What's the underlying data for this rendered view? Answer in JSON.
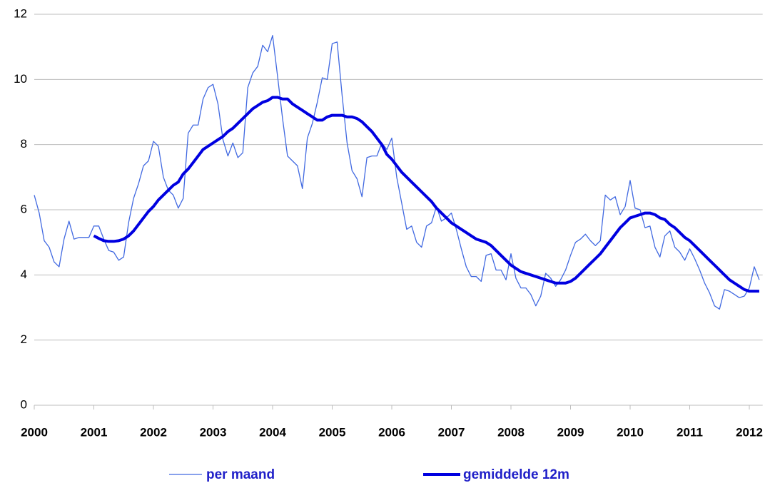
{
  "chart_data": {
    "type": "line",
    "x": [
      2000,
      2000.083,
      2000.167,
      2000.25,
      2000.333,
      2000.417,
      2000.5,
      2000.583,
      2000.667,
      2000.75,
      2000.833,
      2000.917,
      2001,
      2001.083,
      2001.167,
      2001.25,
      2001.333,
      2001.417,
      2001.5,
      2001.583,
      2001.667,
      2001.75,
      2001.833,
      2001.917,
      2002,
      2002.083,
      2002.167,
      2002.25,
      2002.333,
      2002.417,
      2002.5,
      2002.583,
      2002.667,
      2002.75,
      2002.833,
      2002.917,
      2003,
      2003.083,
      2003.167,
      2003.25,
      2003.333,
      2003.417,
      2003.5,
      2003.583,
      2003.667,
      2003.75,
      2003.833,
      2003.917,
      2004,
      2004.083,
      2004.167,
      2004.25,
      2004.333,
      2004.417,
      2004.5,
      2004.583,
      2004.667,
      2004.75,
      2004.833,
      2004.917,
      2005,
      2005.083,
      2005.167,
      2005.25,
      2005.333,
      2005.417,
      2005.5,
      2005.583,
      2005.667,
      2005.75,
      2005.833,
      2005.917,
      2006,
      2006.083,
      2006.167,
      2006.25,
      2006.333,
      2006.417,
      2006.5,
      2006.583,
      2006.667,
      2006.75,
      2006.833,
      2006.917,
      2007,
      2007.083,
      2007.167,
      2007.25,
      2007.333,
      2007.417,
      2007.5,
      2007.583,
      2007.667,
      2007.75,
      2007.833,
      2007.917,
      2008,
      2008.083,
      2008.167,
      2008.25,
      2008.333,
      2008.417,
      2008.5,
      2008.583,
      2008.667,
      2008.75,
      2008.833,
      2008.917,
      2009,
      2009.083,
      2009.167,
      2009.25,
      2009.333,
      2009.417,
      2009.5,
      2009.583,
      2009.667,
      2009.75,
      2009.833,
      2009.917,
      2010,
      2010.083,
      2010.167,
      2010.25,
      2010.333,
      2010.417,
      2010.5,
      2010.583,
      2010.667,
      2010.75,
      2010.833,
      2010.917,
      2011,
      2011.083,
      2011.167,
      2011.25,
      2011.333,
      2011.417,
      2011.5,
      2011.583,
      2011.667,
      2011.75,
      2011.833,
      2011.917,
      2012,
      2012.083,
      2012.167
    ],
    "series": [
      {
        "name": "per maand",
        "color": "#4169e1",
        "width": 1.3,
        "values": [
          6.45,
          5.9,
          5.05,
          4.85,
          4.4,
          4.25,
          5.1,
          5.65,
          5.1,
          5.15,
          5.15,
          5.15,
          5.5,
          5.5,
          5.1,
          4.75,
          4.7,
          4.45,
          4.55,
          5.6,
          6.35,
          6.8,
          7.35,
          7.5,
          8.1,
          7.95,
          7.0,
          6.6,
          6.45,
          6.05,
          6.35,
          8.35,
          8.6,
          8.6,
          9.4,
          9.75,
          9.85,
          9.25,
          8.15,
          7.65,
          8.05,
          7.6,
          7.75,
          9.75,
          10.2,
          10.4,
          11.05,
          10.85,
          11.35,
          10.1,
          8.8,
          7.65,
          7.5,
          7.35,
          6.65,
          8.2,
          8.65,
          9.3,
          10.05,
          10.0,
          11.1,
          11.15,
          9.5,
          8.05,
          7.2,
          6.95,
          6.4,
          7.6,
          7.65,
          7.65,
          8.05,
          7.85,
          8.2,
          7.0,
          6.2,
          5.4,
          5.5,
          5.0,
          4.85,
          5.5,
          5.6,
          6.1,
          5.65,
          5.75,
          5.9,
          5.4,
          4.8,
          4.25,
          3.95,
          3.95,
          3.8,
          4.6,
          4.65,
          4.15,
          4.15,
          3.85,
          4.65,
          3.9,
          3.6,
          3.6,
          3.4,
          3.05,
          3.35,
          4.05,
          3.9,
          3.65,
          3.85,
          4.15,
          4.6,
          5.0,
          5.1,
          5.25,
          5.05,
          4.9,
          5.05,
          6.45,
          6.3,
          6.4,
          5.85,
          6.1,
          6.9,
          6.05,
          6.0,
          5.45,
          5.5,
          4.85,
          4.55,
          5.2,
          5.35,
          4.85,
          4.7,
          4.45,
          4.8,
          4.5,
          4.15,
          3.75,
          3.45,
          3.05,
          2.95,
          3.55,
          3.5,
          3.4,
          3.3,
          3.35,
          3.6,
          4.25,
          3.85
        ]
      },
      {
        "name": "gemiddelde 12m",
        "color": "#0000e0",
        "width": 4,
        "values": [
          null,
          null,
          null,
          null,
          null,
          null,
          null,
          null,
          null,
          null,
          null,
          null,
          5.2,
          5.12,
          5.05,
          5.03,
          5.03,
          5.05,
          5.1,
          5.2,
          5.35,
          5.55,
          5.75,
          5.95,
          6.1,
          6.3,
          6.45,
          6.6,
          6.75,
          6.85,
          7.1,
          7.25,
          7.45,
          7.65,
          7.85,
          7.95,
          8.05,
          8.15,
          8.25,
          8.4,
          8.5,
          8.65,
          8.8,
          8.95,
          9.1,
          9.2,
          9.3,
          9.35,
          9.45,
          9.45,
          9.4,
          9.4,
          9.25,
          9.15,
          9.05,
          8.95,
          8.85,
          8.75,
          8.75,
          8.85,
          8.9,
          8.9,
          8.9,
          8.85,
          8.85,
          8.8,
          8.7,
          8.55,
          8.4,
          8.2,
          8.0,
          7.7,
          7.55,
          7.35,
          7.15,
          7.0,
          6.85,
          6.7,
          6.55,
          6.4,
          6.25,
          6.05,
          5.9,
          5.75,
          5.6,
          5.5,
          5.4,
          5.3,
          5.2,
          5.1,
          5.05,
          5.0,
          4.9,
          4.75,
          4.6,
          4.45,
          4.3,
          4.2,
          4.1,
          4.05,
          4.0,
          3.95,
          3.9,
          3.85,
          3.8,
          3.75,
          3.75,
          3.75,
          3.8,
          3.9,
          4.05,
          4.2,
          4.35,
          4.5,
          4.65,
          4.85,
          5.05,
          5.25,
          5.45,
          5.6,
          5.75,
          5.8,
          5.85,
          5.9,
          5.9,
          5.85,
          5.75,
          5.7,
          5.55,
          5.45,
          5.3,
          5.15,
          5.05,
          4.9,
          4.75,
          4.6,
          4.45,
          4.3,
          4.15,
          4.0,
          3.85,
          3.75,
          3.65,
          3.55,
          3.5,
          3.5,
          3.5
        ]
      }
    ],
    "xlim": [
      2000,
      2012.2
    ],
    "xticks": [
      2000,
      2001,
      2002,
      2003,
      2004,
      2005,
      2006,
      2007,
      2008,
      2009,
      2010,
      2011,
      2012
    ],
    "ylim": [
      0,
      12
    ],
    "yticks": [
      0,
      2,
      4,
      6,
      8,
      10,
      12
    ],
    "grid": true,
    "legend": "bottom"
  }
}
